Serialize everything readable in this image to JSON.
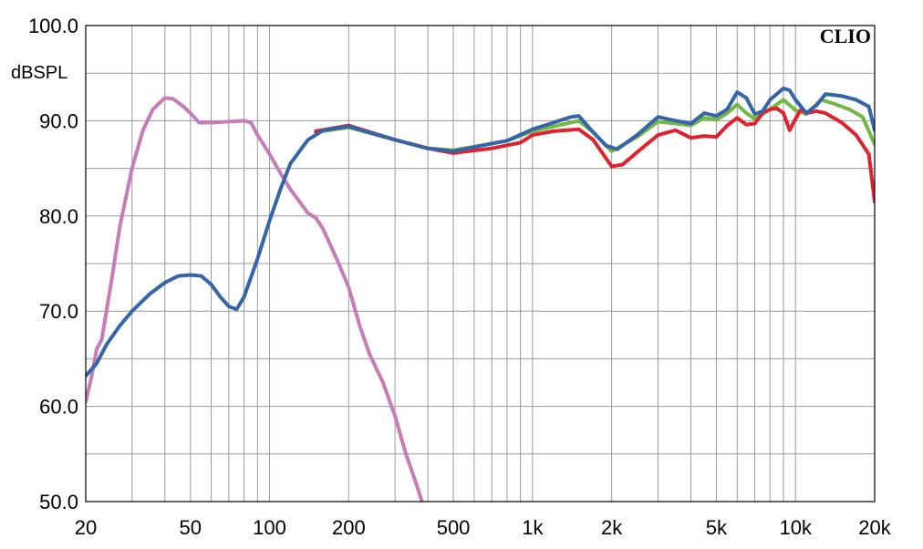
{
  "chart_data": {
    "type": "line",
    "title": "",
    "xlabel": "",
    "ylabel": "dBSPL",
    "watermark": "CLIO",
    "x_scale": "log",
    "xlim": [
      20,
      20000
    ],
    "ylim": [
      50,
      100
    ],
    "grid": true,
    "x_ticks": [
      {
        "value": 20,
        "label": "20"
      },
      {
        "value": 50,
        "label": "50"
      },
      {
        "value": 100,
        "label": "100"
      },
      {
        "value": 200,
        "label": "200"
      },
      {
        "value": 500,
        "label": "500"
      },
      {
        "value": 1000,
        "label": "1k"
      },
      {
        "value": 2000,
        "label": "2k"
      },
      {
        "value": 5000,
        "label": "5k"
      },
      {
        "value": 10000,
        "label": "10k"
      },
      {
        "value": 20000,
        "label": "20k"
      }
    ],
    "y_ticks": [
      {
        "value": 50,
        "label": "50.0"
      },
      {
        "value": 60,
        "label": "60.0"
      },
      {
        "value": 70,
        "label": "70.0"
      },
      {
        "value": 80,
        "label": "80.0"
      },
      {
        "value": 90,
        "label": "90.0"
      },
      {
        "value": 100,
        "label": "100.0"
      }
    ],
    "series": [
      {
        "color": "#c77bb8",
        "points": [
          [
            20,
            60.5
          ],
          [
            21,
            63
          ],
          [
            22,
            66
          ],
          [
            23,
            67
          ],
          [
            25,
            73
          ],
          [
            27,
            79
          ],
          [
            30,
            85
          ],
          [
            33,
            89
          ],
          [
            36,
            91.2
          ],
          [
            40,
            92.4
          ],
          [
            43,
            92.3
          ],
          [
            47,
            91.5
          ],
          [
            50,
            90.8
          ],
          [
            54,
            89.8
          ],
          [
            60,
            89.8
          ],
          [
            70,
            89.9
          ],
          [
            80,
            90.0
          ],
          [
            85,
            89.8
          ],
          [
            90,
            88.5
          ],
          [
            100,
            86.5
          ],
          [
            110,
            84.5
          ],
          [
            120,
            82.8
          ],
          [
            130,
            81.5
          ],
          [
            140,
            80.3
          ],
          [
            150,
            79.8
          ],
          [
            160,
            78.6
          ],
          [
            170,
            77.0
          ],
          [
            180,
            75.5
          ],
          [
            200,
            72.5
          ],
          [
            220,
            68.5
          ],
          [
            240,
            65.5
          ],
          [
            270,
            62.5
          ],
          [
            300,
            59
          ],
          [
            330,
            55
          ],
          [
            360,
            52
          ],
          [
            380,
            50
          ]
        ]
      },
      {
        "color": "#74b844",
        "points": [
          [
            150,
            88.8
          ],
          [
            200,
            89.3
          ],
          [
            300,
            88.0
          ],
          [
            400,
            87.1
          ],
          [
            500,
            86.9
          ],
          [
            700,
            87.6
          ],
          [
            800,
            87.9
          ],
          [
            1000,
            88.9
          ],
          [
            1200,
            89.4
          ],
          [
            1500,
            90.0
          ],
          [
            1700,
            88.8
          ],
          [
            2000,
            86.8
          ],
          [
            2500,
            88.3
          ],
          [
            3000,
            89.9
          ],
          [
            3500,
            89.7
          ],
          [
            4000,
            89.5
          ],
          [
            4500,
            90.3
          ],
          [
            5000,
            90.1
          ],
          [
            5500,
            90.8
          ],
          [
            6000,
            91.7
          ],
          [
            6500,
            90.8
          ],
          [
            7000,
            90.2
          ],
          [
            8000,
            91.2
          ],
          [
            9000,
            92.2
          ],
          [
            10000,
            91.1
          ],
          [
            11000,
            90.7
          ],
          [
            12500,
            92.2
          ],
          [
            14000,
            91.8
          ],
          [
            16000,
            91.2
          ],
          [
            18000,
            90.4
          ],
          [
            20000,
            87.5
          ]
        ]
      },
      {
        "color": "#e0212e",
        "points": [
          [
            150,
            88.9
          ],
          [
            200,
            89.5
          ],
          [
            300,
            88.0
          ],
          [
            400,
            87.1
          ],
          [
            500,
            86.6
          ],
          [
            700,
            87.1
          ],
          [
            900,
            87.7
          ],
          [
            1000,
            88.5
          ],
          [
            1200,
            88.9
          ],
          [
            1500,
            89.1
          ],
          [
            1700,
            88.0
          ],
          [
            2000,
            85.2
          ],
          [
            2200,
            85.4
          ],
          [
            2500,
            86.7
          ],
          [
            3000,
            88.5
          ],
          [
            3500,
            89.0
          ],
          [
            4000,
            88.2
          ],
          [
            4500,
            88.4
          ],
          [
            5000,
            88.3
          ],
          [
            5500,
            89.5
          ],
          [
            6000,
            90.3
          ],
          [
            6500,
            89.6
          ],
          [
            7000,
            89.7
          ],
          [
            7500,
            90.8
          ],
          [
            8000,
            91.2
          ],
          [
            8500,
            91.3
          ],
          [
            9000,
            90.8
          ],
          [
            9500,
            89.0
          ],
          [
            10000,
            90.2
          ],
          [
            10500,
            91.2
          ],
          [
            11000,
            90.8
          ],
          [
            12000,
            91.0
          ],
          [
            13000,
            90.8
          ],
          [
            15000,
            89.8
          ],
          [
            17000,
            88.5
          ],
          [
            19000,
            86.5
          ],
          [
            20000,
            81.5
          ]
        ]
      },
      {
        "color": "#3564a8",
        "points": [
          [
            20,
            63.2
          ],
          [
            22,
            64.5
          ],
          [
            24,
            66.5
          ],
          [
            27,
            68.5
          ],
          [
            30,
            70.0
          ],
          [
            35,
            71.8
          ],
          [
            40,
            73.0
          ],
          [
            45,
            73.7
          ],
          [
            50,
            73.8
          ],
          [
            55,
            73.7
          ],
          [
            60,
            72.8
          ],
          [
            65,
            71.5
          ],
          [
            70,
            70.5
          ],
          [
            75,
            70.2
          ],
          [
            80,
            71.5
          ],
          [
            90,
            75.5
          ],
          [
            100,
            79.5
          ],
          [
            110,
            82.8
          ],
          [
            120,
            85.5
          ],
          [
            140,
            88.0
          ],
          [
            160,
            89.0
          ],
          [
            200,
            89.4
          ],
          [
            300,
            88.0
          ],
          [
            400,
            87.1
          ],
          [
            500,
            86.8
          ],
          [
            700,
            87.6
          ],
          [
            800,
            87.9
          ],
          [
            1000,
            89.1
          ],
          [
            1200,
            89.8
          ],
          [
            1400,
            90.4
          ],
          [
            1500,
            90.5
          ],
          [
            1700,
            88.8
          ],
          [
            1900,
            87.4
          ],
          [
            2100,
            87.0
          ],
          [
            2500,
            88.5
          ],
          [
            3000,
            90.4
          ],
          [
            3500,
            90.0
          ],
          [
            4000,
            89.7
          ],
          [
            4500,
            90.8
          ],
          [
            5000,
            90.5
          ],
          [
            5500,
            91.2
          ],
          [
            6000,
            93.0
          ],
          [
            6500,
            92.4
          ],
          [
            7000,
            90.7
          ],
          [
            7500,
            91.0
          ],
          [
            8000,
            92.2
          ],
          [
            9000,
            93.4
          ],
          [
            9500,
            93.2
          ],
          [
            10000,
            92.2
          ],
          [
            11000,
            90.8
          ],
          [
            12000,
            91.6
          ],
          [
            13000,
            92.8
          ],
          [
            15000,
            92.6
          ],
          [
            17000,
            92.2
          ],
          [
            19000,
            91.5
          ],
          [
            20000,
            89.0
          ]
        ]
      }
    ]
  }
}
